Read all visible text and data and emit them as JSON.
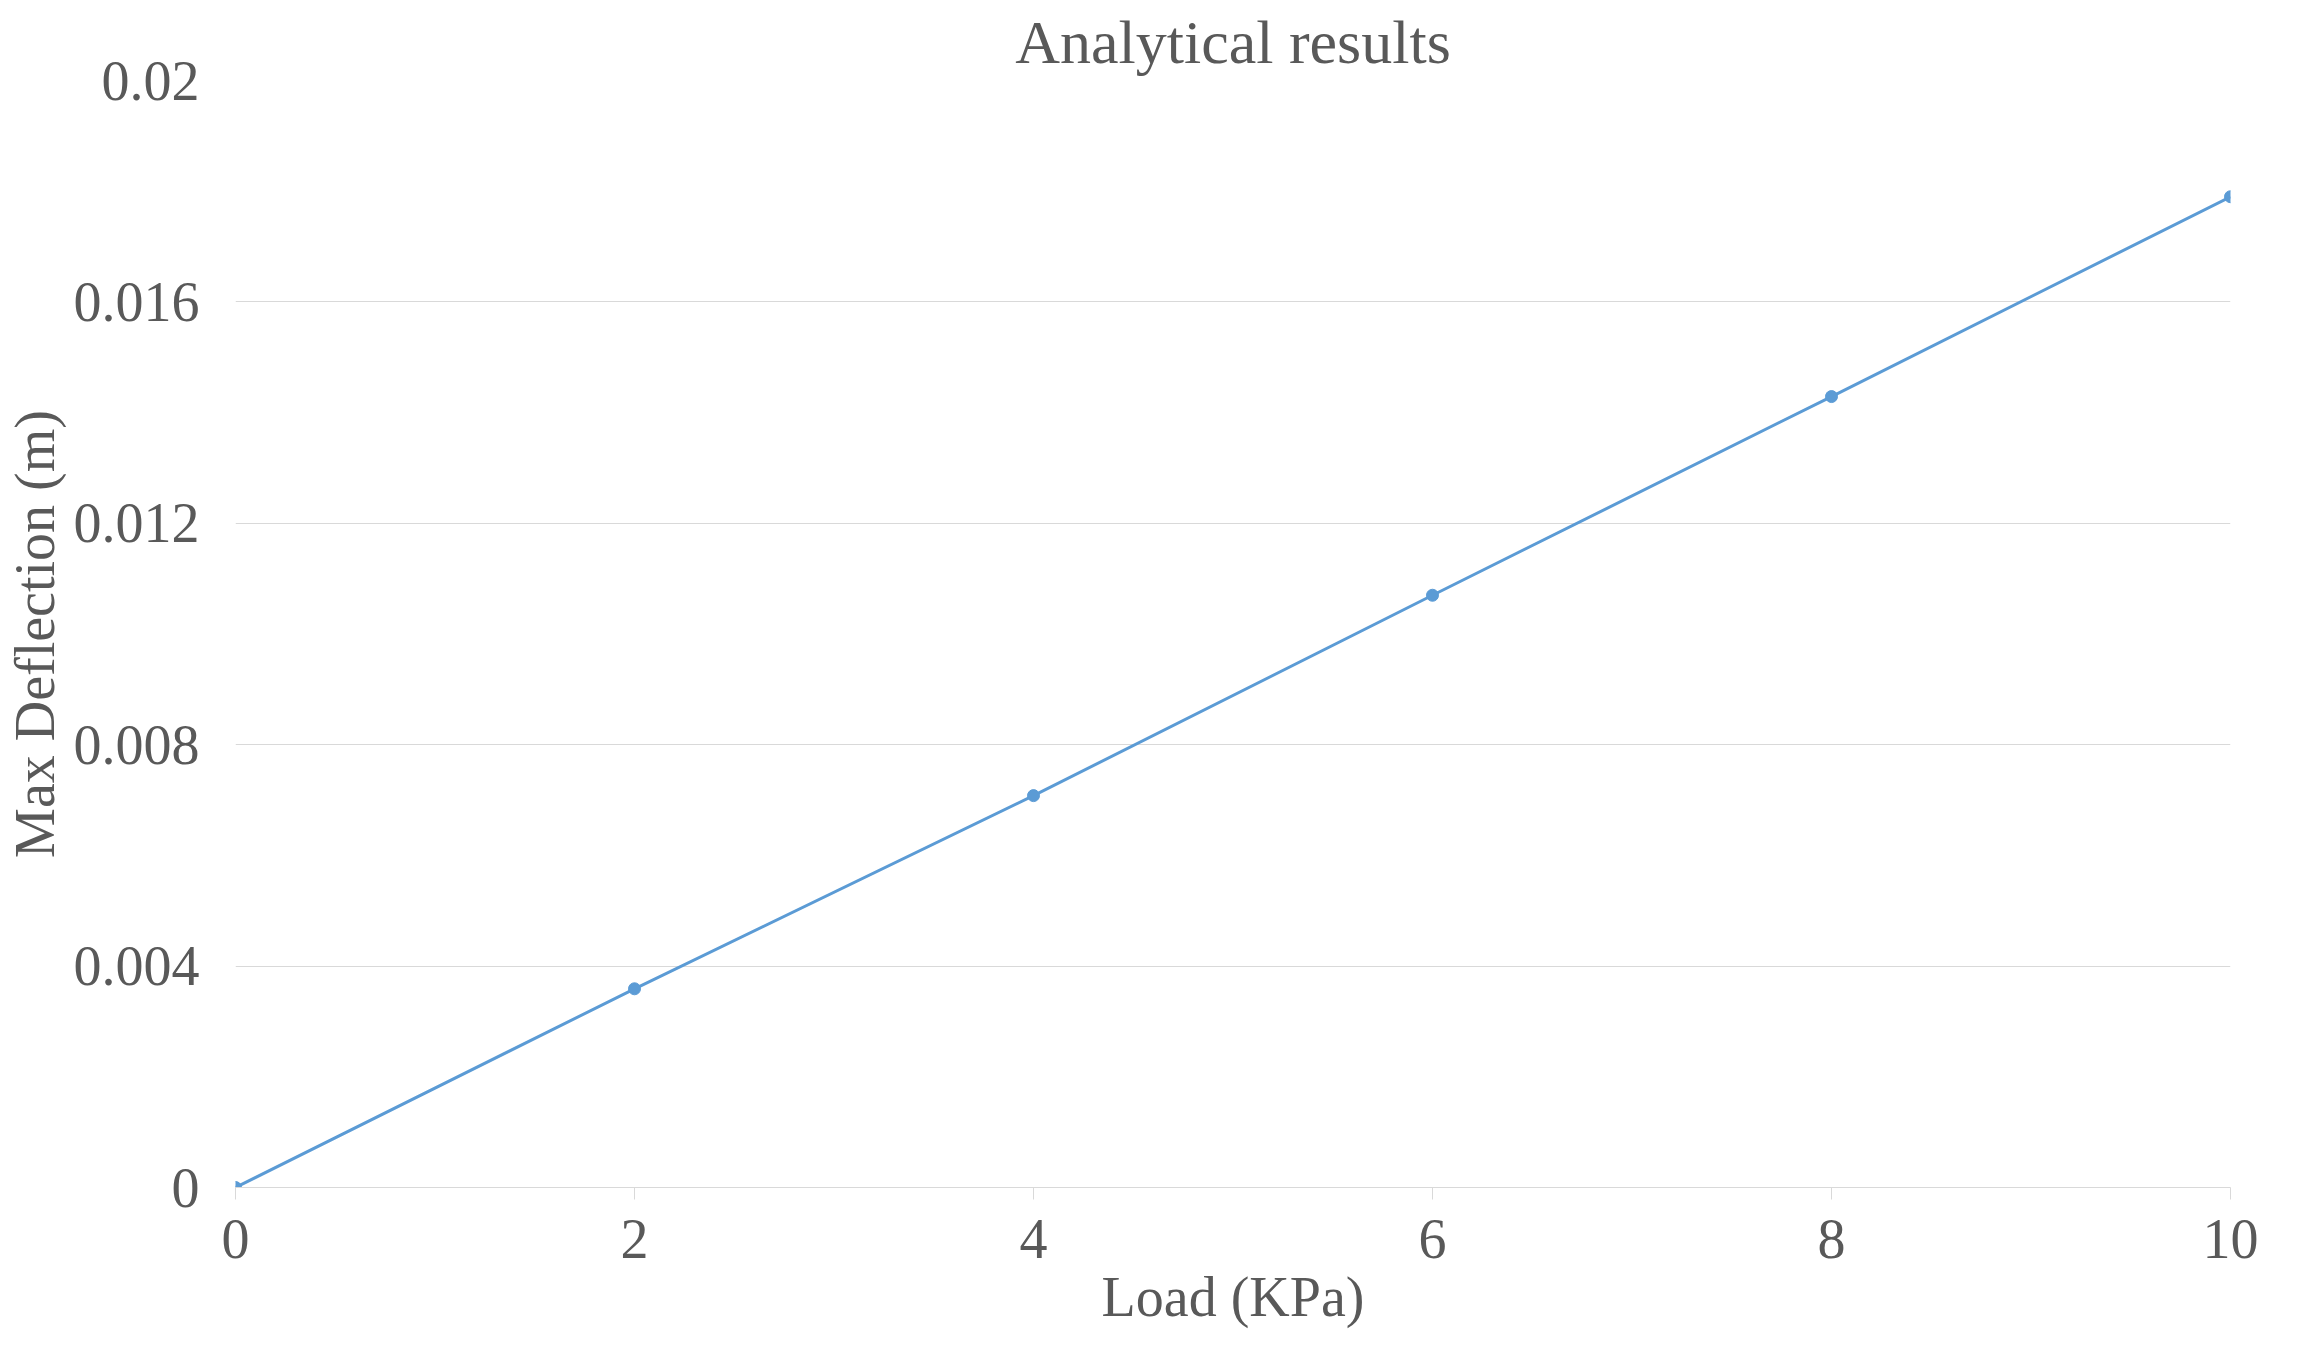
{
  "chart_data": {
    "type": "line",
    "title": "Analytical results",
    "xlabel": "Load (KPa)",
    "ylabel": "Max Deflection (m)",
    "x": [
      0,
      2,
      4,
      6,
      8,
      10
    ],
    "series": [
      {
        "color": "#5b9bd5",
        "values": [
          0,
          0.00359,
          0.00708,
          0.0107,
          0.01429,
          0.0179
        ]
      }
    ],
    "xlim": [
      0,
      10
    ],
    "xticks": [
      0,
      2,
      4,
      6,
      8,
      10
    ],
    "ylim": [
      0,
      0.02
    ],
    "yticks": [
      0,
      0.004,
      0.008,
      0.012,
      0.016,
      0.02
    ],
    "grid": "y",
    "marker": "circle",
    "line_style": "solid"
  }
}
